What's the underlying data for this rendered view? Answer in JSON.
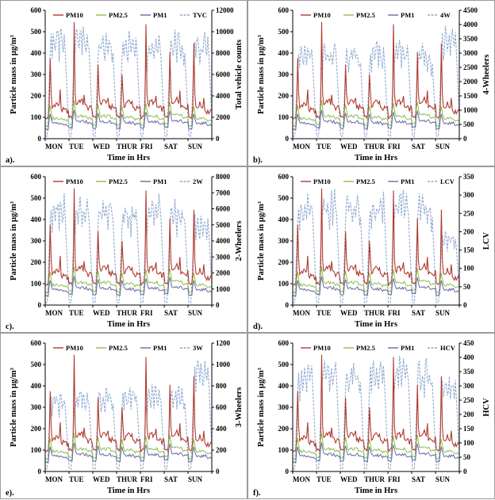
{
  "chart_data": [
    {
      "type": "line",
      "panel_label": "a).",
      "xlabel": "Time in Hrs",
      "ylabel": "Particle mass in µg/m³",
      "y2label": "Total vehicle counts",
      "ylim": [
        0,
        600
      ],
      "y2lim": [
        0,
        12000
      ],
      "yticks": [
        0,
        100,
        200,
        300,
        400,
        500,
        600
      ],
      "y2ticks": [
        0,
        2000,
        4000,
        6000,
        8000,
        10000,
        12000
      ],
      "days": [
        "MON",
        "TUE",
        "WED",
        "THUR",
        "FRI",
        "SAT",
        "SUN"
      ],
      "legend": [
        "PM10",
        "PM2.5",
        "PM1",
        "TVC"
      ],
      "vehicle_series": {
        "name": "TVC",
        "daily_peak": [
          10500,
          10500,
          10000,
          10000,
          9500,
          10000,
          10000
        ]
      }
    },
    {
      "type": "line",
      "panel_label": "b).",
      "xlabel": "Time in Hrs",
      "ylabel": "Particle mass in µg/m³",
      "y2label": "4-Wheelers",
      "ylim": [
        0,
        600
      ],
      "y2lim": [
        0,
        4500
      ],
      "yticks": [
        0,
        100,
        200,
        300,
        400,
        500,
        600
      ],
      "y2ticks": [
        0,
        500,
        1000,
        1500,
        2000,
        2500,
        3000,
        3500,
        4000,
        4500
      ],
      "days": [
        "MON",
        "TUE",
        "WED",
        "THUR",
        "FRI",
        "SAT",
        "SUN"
      ],
      "legend": [
        "PM10",
        "PM2.5",
        "PM1",
        "4W"
      ],
      "vehicle_series": {
        "name": "4W",
        "daily_peak": [
          3300,
          3300,
          3300,
          3400,
          3400,
          3300,
          3900
        ]
      }
    },
    {
      "type": "line",
      "panel_label": "c).",
      "xlabel": "Time in Hrs",
      "ylabel": "Particle mass in µg/m³",
      "y2label": "2-Wheelers",
      "ylim": [
        0,
        600
      ],
      "y2lim": [
        0,
        8000
      ],
      "yticks": [
        0,
        100,
        200,
        300,
        400,
        500,
        600
      ],
      "y2ticks": [
        0,
        1000,
        2000,
        3000,
        4000,
        5000,
        6000,
        7000,
        8000
      ],
      "days": [
        "MON",
        "TUE",
        "WED",
        "THUR",
        "FRI",
        "SAT",
        "SUN"
      ],
      "legend": [
        "PM10",
        "PM2.5",
        "PM1",
        "2W"
      ],
      "vehicle_series": {
        "name": "2W",
        "daily_peak": [
          7000,
          6600,
          6600,
          6400,
          6800,
          6500,
          5700
        ]
      }
    },
    {
      "type": "line",
      "panel_label": "d).",
      "xlabel": "Time in Hrs",
      "ylabel": "Particle mass in µg/m³",
      "y2label": "LCV",
      "ylim": [
        0,
        600
      ],
      "y2lim": [
        0,
        350
      ],
      "yticks": [
        0,
        100,
        200,
        300,
        400,
        500,
        600
      ],
      "y2ticks": [
        0,
        50,
        100,
        150,
        200,
        250,
        300,
        350
      ],
      "days": [
        "MON",
        "TUE",
        "WED",
        "THUR",
        "FRI",
        "SAT",
        "SUN"
      ],
      "legend": [
        "PM10",
        "PM2.5",
        "PM1",
        "LCV"
      ],
      "vehicle_series": {
        "name": "LCV",
        "daily_peak": [
          310,
          310,
          300,
          310,
          310,
          300,
          200
        ]
      }
    },
    {
      "type": "line",
      "panel_label": "e).",
      "xlabel": "Time in Hrs",
      "ylabel": "Particle mass in µg/m³",
      "y2label": "3-Wheelers",
      "ylim": [
        0,
        600
      ],
      "y2lim": [
        0,
        1200
      ],
      "yticks": [
        0,
        100,
        200,
        300,
        400,
        500,
        600
      ],
      "y2ticks": [
        0,
        200,
        400,
        600,
        800,
        1000,
        1200
      ],
      "days": [
        "MON",
        "TUE",
        "WED",
        "THUR",
        "FRI",
        "SAT",
        "SUN"
      ],
      "legend": [
        "PM10",
        "PM2.5",
        "PM1",
        "3W"
      ],
      "vehicle_series": {
        "name": "3W",
        "daily_peak": [
          780,
          780,
          790,
          800,
          820,
          800,
          1040
        ]
      }
    },
    {
      "type": "line",
      "panel_label": "f).",
      "xlabel": "Time in Hrs",
      "ylabel": "Particle mass in µg/m³",
      "y2label": "HCV",
      "ylim": [
        0,
        600
      ],
      "y2lim": [
        0,
        450
      ],
      "yticks": [
        0,
        100,
        200,
        300,
        400,
        500,
        600
      ],
      "y2ticks": [
        0,
        50,
        100,
        150,
        200,
        250,
        300,
        350,
        400,
        450
      ],
      "days": [
        "MON",
        "TUE",
        "WED",
        "THUR",
        "FRI",
        "SAT",
        "SUN"
      ],
      "legend": [
        "PM10",
        "PM2.5",
        "PM1",
        "HCV"
      ],
      "vehicle_series": {
        "name": "HCV",
        "daily_peak": [
          380,
          400,
          390,
          390,
          400,
          390,
          330
        ]
      }
    }
  ],
  "pm_series": {
    "PM10": {
      "daily_baseline": [
        150,
        165,
        165,
        160,
        160,
        170,
        145
      ],
      "daily_spike": [
        375,
        545,
        345,
        300,
        535,
        405,
        445
      ],
      "daily_secondary": [
        230,
        205,
        190,
        175,
        200,
        225,
        190
      ]
    },
    "PM2.5": {
      "daily_baseline": [
        95,
        105,
        105,
        100,
        105,
        110,
        95
      ],
      "daily_peak": [
        155,
        180,
        160,
        150,
        165,
        170,
        150
      ]
    },
    "PM1": {
      "daily_baseline": [
        70,
        80,
        80,
        75,
        80,
        85,
        72
      ],
      "daily_peak": [
        115,
        135,
        120,
        115,
        125,
        130,
        115
      ]
    }
  },
  "colors": {
    "PM10": "#b03a2e",
    "PM2.5": "#8dbf4d",
    "PM1": "#6b6aa8",
    "vehicle": "#8faad0",
    "axis": "#000000",
    "border": "#9a9a9a"
  }
}
